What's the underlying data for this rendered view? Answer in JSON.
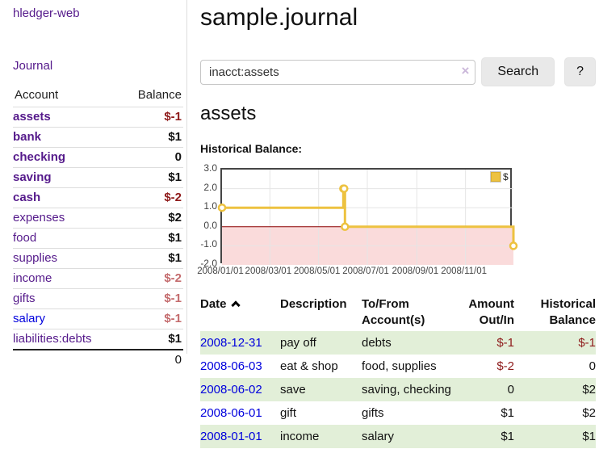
{
  "app": {
    "title": "hledger-web",
    "nav_journal": "Journal"
  },
  "sidebar": {
    "headers": {
      "account": "Account",
      "balance": "Balance"
    },
    "rows": [
      {
        "name": "assets",
        "indent": 0,
        "bold": true,
        "name_color": "purple",
        "balance": "$-1",
        "balance_color": "red"
      },
      {
        "name": "bank",
        "indent": 1,
        "bold": true,
        "name_color": "purple",
        "balance": "$1",
        "balance_color": "black"
      },
      {
        "name": "checking",
        "indent": 2,
        "bold": true,
        "name_color": "purple",
        "balance": "0",
        "balance_color": "black"
      },
      {
        "name": "saving",
        "indent": 2,
        "bold": true,
        "name_color": "purple",
        "balance": "$1",
        "balance_color": "black"
      },
      {
        "name": "cash",
        "indent": 1,
        "bold": true,
        "name_color": "purple",
        "balance": "$-2",
        "balance_color": "red"
      },
      {
        "name": "expenses",
        "indent": 0,
        "bold": false,
        "name_color": "purple",
        "balance": "$2",
        "balance_color": "black"
      },
      {
        "name": "food",
        "indent": 1,
        "bold": false,
        "name_color": "purple",
        "balance": "$1",
        "balance_color": "black"
      },
      {
        "name": "supplies",
        "indent": 1,
        "bold": false,
        "name_color": "purple",
        "balance": "$1",
        "balance_color": "black"
      },
      {
        "name": "income",
        "indent": 0,
        "bold": false,
        "name_color": "purple",
        "balance": "$-2",
        "balance_color": "soft"
      },
      {
        "name": "gifts",
        "indent": 1,
        "bold": false,
        "name_color": "purple",
        "balance": "$-1",
        "balance_color": "soft"
      },
      {
        "name": "salary",
        "indent": 1,
        "bold": false,
        "name_color": "blue",
        "balance": "$-1",
        "balance_color": "soft"
      },
      {
        "name": "liabilities:debts",
        "indent": 0,
        "bold": false,
        "name_color": "purple",
        "balance": "$1",
        "balance_color": "black"
      }
    ],
    "total": "0"
  },
  "main": {
    "title": "sample.journal",
    "search": {
      "value": "inacct:assets",
      "clear_icon": "×",
      "button": "Search",
      "help_button": "?"
    },
    "account_heading": "assets",
    "chart_heading": "Historical Balance:"
  },
  "chart_data": {
    "type": "line",
    "title": "Historical Balance of assets",
    "step": "after",
    "legend": [
      {
        "name": "$",
        "color": "#edc240"
      }
    ],
    "legend_position": "top-right",
    "x": [
      "2008-01-01",
      "2008-06-01",
      "2008-06-02",
      "2008-06-03",
      "2008-12-31"
    ],
    "values": [
      1,
      2,
      2,
      0,
      -1
    ],
    "day_of_year": [
      0,
      152,
      153,
      154,
      365
    ],
    "x_range_days": [
      0,
      365
    ],
    "ylim": [
      -2,
      3
    ],
    "yticks": [
      "3.0",
      "2.0",
      "1.0",
      "0.0",
      "-1.0",
      "-2.0"
    ],
    "xticks": [
      {
        "label": "2008/01/01",
        "day": 0
      },
      {
        "label": "2008/03/01",
        "day": 60
      },
      {
        "label": "2008/05/01",
        "day": 121
      },
      {
        "label": "2008/07/01",
        "day": 182
      },
      {
        "label": "2008/09/01",
        "day": 244
      },
      {
        "label": "2008/11/01",
        "day": 305
      }
    ],
    "grid": true,
    "negative_zone_fill": "#fadbdb",
    "zero_line_color": "#8b0000",
    "grid_color": "#e5e5e5"
  },
  "register": {
    "headers": {
      "date": "Date",
      "description": "Description",
      "tofrom": "To/From Account(s)",
      "amount": "Amount Out/In",
      "historical": "Historical Balance"
    },
    "rows": [
      {
        "date": "2008-12-31",
        "description": "pay off",
        "accounts": "debts",
        "amount": "$-1",
        "amount_neg": true,
        "historical": "$-1",
        "historical_neg": true
      },
      {
        "date": "2008-06-03",
        "description": "eat & shop",
        "accounts": "food, supplies",
        "amount": "$-2",
        "amount_neg": true,
        "historical": "0",
        "historical_neg": false
      },
      {
        "date": "2008-06-02",
        "description": "save",
        "accounts": "saving, checking",
        "amount": "0",
        "amount_neg": false,
        "historical": "$2",
        "historical_neg": false
      },
      {
        "date": "2008-06-01",
        "description": "gift",
        "accounts": "gifts",
        "amount": "$1",
        "amount_neg": false,
        "historical": "$2",
        "historical_neg": false
      },
      {
        "date": "2008-01-01",
        "description": "income",
        "accounts": "salary",
        "amount": "$1",
        "amount_neg": false,
        "historical": "$1",
        "historical_neg": false
      }
    ]
  }
}
